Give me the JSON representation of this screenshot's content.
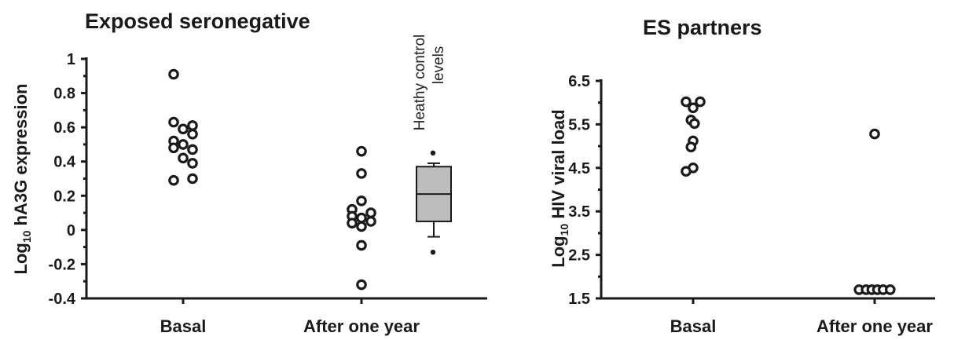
{
  "chart_data": [
    {
      "type": "scatter",
      "title": "Exposed seronegative",
      "ylabel_prefix": "Log",
      "ylabel_sub": "10",
      "ylabel_rest": " hA3G expression",
      "ylim": [
        -0.4,
        1
      ],
      "yticks": [
        -0.4,
        -0.2,
        0,
        0.2,
        0.4,
        0.6,
        0.8,
        1
      ],
      "ytick_labels": [
        "-0.4",
        "-0.2",
        "0",
        "0.2",
        "0.4",
        "0.6",
        "0.8",
        "1"
      ],
      "categories": [
        "Basal",
        "After one year"
      ],
      "series": [
        {
          "category": "Basal",
          "points": [
            {
              "dx": -1,
              "y": 0.91
            },
            {
              "dx": -1,
              "y": 0.63
            },
            {
              "dx": 1,
              "y": 0.61
            },
            {
              "dx": 0,
              "y": 0.59
            },
            {
              "dx": 1,
              "y": 0.56
            },
            {
              "dx": -1,
              "y": 0.52
            },
            {
              "dx": 0,
              "y": 0.5
            },
            {
              "dx": -1,
              "y": 0.48
            },
            {
              "dx": 1,
              "y": 0.47
            },
            {
              "dx": 0,
              "y": 0.42
            },
            {
              "dx": 1,
              "y": 0.39
            },
            {
              "dx": -1,
              "y": 0.29
            },
            {
              "dx": 1,
              "y": 0.3
            }
          ]
        },
        {
          "category": "After one year",
          "points": [
            {
              "dx": 0,
              "y": 0.46
            },
            {
              "dx": 0,
              "y": 0.33
            },
            {
              "dx": 0,
              "y": 0.17
            },
            {
              "dx": -1,
              "y": 0.12
            },
            {
              "dx": 1,
              "y": 0.1
            },
            {
              "dx": -1,
              "y": 0.08
            },
            {
              "dx": 0,
              "y": 0.07
            },
            {
              "dx": -1,
              "y": 0.04
            },
            {
              "dx": 1,
              "y": 0.05
            },
            {
              "dx": 0,
              "y": 0.02
            },
            {
              "dx": 0,
              "y": -0.09
            },
            {
              "dx": 0,
              "y": -0.32
            }
          ]
        }
      ],
      "boxplot": {
        "label_line1": "Heathy control",
        "label_line2": "levels",
        "whisker_high": 0.39,
        "q3": 0.37,
        "median": 0.21,
        "q1": 0.05,
        "whisker_low": -0.04,
        "outliers": [
          0.45,
          -0.13
        ],
        "fill": "#bdbdbd"
      }
    },
    {
      "type": "scatter",
      "title": "ES partners",
      "ylabel_prefix": "Log",
      "ylabel_sub": "10",
      "ylabel_rest": " HIV viral load",
      "ylim": [
        1.5,
        6.5
      ],
      "yticks": [
        1.5,
        2.5,
        3.5,
        4.5,
        5.5,
        6.5
      ],
      "ytick_labels": [
        "1.5",
        "2.5",
        "3.5",
        "4.5",
        "5.5",
        "6.5"
      ],
      "categories": [
        "Basal",
        "After one year"
      ],
      "series": [
        {
          "category": "Basal",
          "points": [
            {
              "dx": -1,
              "y": 6.02
            },
            {
              "dx": 1,
              "y": 6.02
            },
            {
              "dx": 0,
              "y": 5.88
            },
            {
              "dx": -0.3,
              "y": 5.6
            },
            {
              "dx": 0.2,
              "y": 5.52
            },
            {
              "dx": 0,
              "y": 5.12
            },
            {
              "dx": -0.3,
              "y": 4.98
            },
            {
              "dx": 0,
              "y": 4.5
            },
            {
              "dx": -1,
              "y": 4.42
            }
          ]
        },
        {
          "category": "After one year",
          "points": [
            {
              "dx": 0,
              "y": 5.28
            },
            {
              "dx": -2.2,
              "y": 1.7
            },
            {
              "dx": -1.2,
              "y": 1.7
            },
            {
              "dx": -0.4,
              "y": 1.7
            },
            {
              "dx": 0.4,
              "y": 1.7
            },
            {
              "dx": 1.2,
              "y": 1.7
            },
            {
              "dx": 2.2,
              "y": 1.7
            }
          ]
        }
      ]
    }
  ]
}
